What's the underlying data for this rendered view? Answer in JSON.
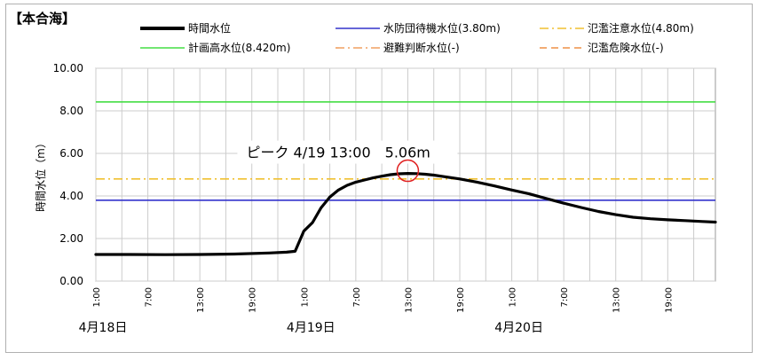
{
  "chart_data": {
    "type": "line",
    "station": "【本合海】",
    "ylabel": "時間水位（m）",
    "ylim": [
      0,
      10
    ],
    "yticks": [
      "0.00",
      "2.00",
      "4.00",
      "6.00",
      "8.00",
      "10.00"
    ],
    "xlim": [
      0,
      71.5
    ],
    "x_tick_labels": [
      "1:00",
      "7:00",
      "13:00",
      "19:00",
      "1:00",
      "7:00",
      "13:00",
      "19:00",
      "1:00",
      "7:00",
      "13:00",
      "19:00"
    ],
    "date_labels": [
      "4月18日",
      "4月19日",
      "4月20日"
    ],
    "grid": true,
    "legend": [
      {
        "label": "時間水位",
        "color": "#000000",
        "style": "solid-thick"
      },
      {
        "label": "水防団待機水位(3.80m)",
        "color": "#3333cc",
        "style": "solid"
      },
      {
        "label": "氾濫注意水位(4.80m)",
        "color": "#f0c030",
        "style": "dash-dot"
      },
      {
        "label": "計画高水位(8.420m)",
        "color": "#44dd44",
        "style": "solid"
      },
      {
        "label": "避難判断水位(-)",
        "color": "#f0a060",
        "style": "dash-dot"
      },
      {
        "label": "氾濫危険水位(-)",
        "color": "#f0a060",
        "style": "dashed"
      }
    ],
    "reference_lines": [
      {
        "name": "水防団待機水位",
        "value": 3.8,
        "color": "#3333cc"
      },
      {
        "name": "氾濫注意水位",
        "value": 4.8,
        "color": "#f0c030"
      },
      {
        "name": "計画高水位",
        "value": 8.42,
        "color": "#44dd44"
      }
    ],
    "series": [
      {
        "name": "時間水位",
        "color": "#000000",
        "points": [
          [
            0,
            1.25
          ],
          [
            4,
            1.25
          ],
          [
            8,
            1.24
          ],
          [
            12,
            1.25
          ],
          [
            16,
            1.27
          ],
          [
            20,
            1.32
          ],
          [
            22,
            1.36
          ],
          [
            23,
            1.4
          ],
          [
            24,
            2.35
          ],
          [
            25,
            2.75
          ],
          [
            26,
            3.45
          ],
          [
            27,
            3.95
          ],
          [
            28,
            4.28
          ],
          [
            29,
            4.5
          ],
          [
            30,
            4.65
          ],
          [
            31,
            4.75
          ],
          [
            32,
            4.85
          ],
          [
            33,
            4.93
          ],
          [
            34,
            5.0
          ],
          [
            35,
            5.04
          ],
          [
            36,
            5.06
          ],
          [
            37,
            5.05
          ],
          [
            38,
            5.02
          ],
          [
            39,
            4.98
          ],
          [
            40,
            4.92
          ],
          [
            42,
            4.8
          ],
          [
            44,
            4.65
          ],
          [
            46,
            4.47
          ],
          [
            48,
            4.28
          ],
          [
            50,
            4.1
          ],
          [
            52,
            3.88
          ],
          [
            54,
            3.66
          ],
          [
            56,
            3.46
          ],
          [
            58,
            3.27
          ],
          [
            60,
            3.12
          ],
          [
            62,
            3.0
          ],
          [
            64,
            2.93
          ],
          [
            66,
            2.88
          ],
          [
            68,
            2.84
          ],
          [
            70,
            2.8
          ],
          [
            71.5,
            2.77
          ]
        ]
      }
    ],
    "annotation": {
      "text": "ピーク 4/19 13:00　5.06m",
      "x": 36,
      "y": 5.06
    }
  }
}
